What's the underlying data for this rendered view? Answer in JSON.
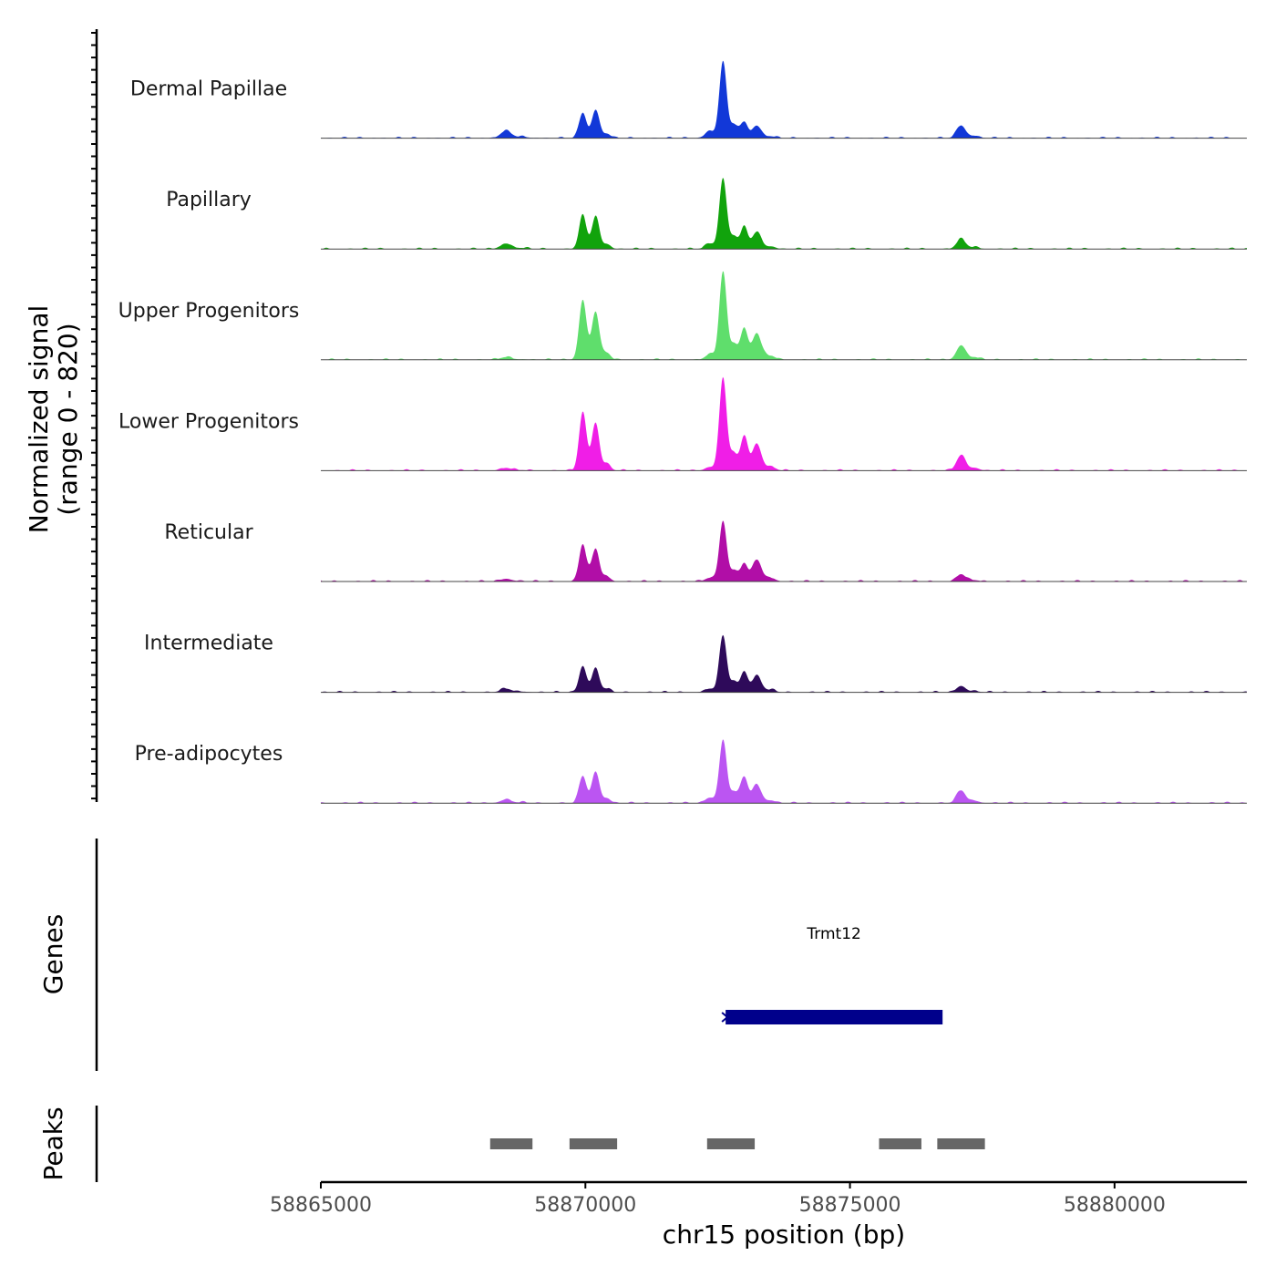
{
  "chart_data": {
    "type": "area",
    "chromosome": "chr15",
    "xlabel": "chr15 position (bp)",
    "ylabel_line1": "Normalized signal",
    "ylabel_line2": "(range 0 - 820)",
    "xlim": [
      58865000,
      58882500
    ],
    "x_ticks": [
      58865000,
      58870000,
      58875000,
      58880000
    ],
    "x_tick_labels": [
      "58865000",
      "58870000",
      "58875000",
      "58880000"
    ],
    "signal_range": [
      0,
      820
    ],
    "peak_centers": [
      58868500,
      58869950,
      58870200,
      58872350,
      58872600,
      58873000,
      58873250,
      58877100
    ],
    "tracks": [
      {
        "name": "Dermal Papillae",
        "color": "#1238d8",
        "heights": [
          80,
          280,
          270,
          80,
          820,
          180,
          110,
          140
        ]
      },
      {
        "name": "Papillary",
        "color": "#11a30c",
        "heights": [
          60,
          370,
          300,
          60,
          770,
          240,
          150,
          110
        ]
      },
      {
        "name": "Upper Progenitors",
        "color": "#5fde6c",
        "heights": [
          30,
          660,
          430,
          60,
          960,
          350,
          240,
          160
        ]
      },
      {
        "name": "Lower Progenitors",
        "color": "#f01ee7",
        "heights": [
          30,
          640,
          430,
          40,
          1020,
          380,
          240,
          170
        ]
      },
      {
        "name": "Reticular",
        "color": "#b10ea7",
        "heights": [
          30,
          410,
          300,
          40,
          660,
          200,
          210,
          80
        ]
      },
      {
        "name": "Intermediate",
        "color": "#2e0a5a",
        "heights": [
          40,
          290,
          220,
          40,
          620,
          230,
          150,
          70
        ]
      },
      {
        "name": "Pre-adipocytes",
        "color": "#bb55f2",
        "heights": [
          40,
          300,
          300,
          60,
          680,
          290,
          160,
          140
        ]
      }
    ],
    "genes_label": "Genes",
    "genes": [
      {
        "name": "Trmt12",
        "start": 58872650,
        "end": 58876750,
        "strand": "+",
        "color": "#00008b"
      }
    ],
    "peaks_label": "Peaks",
    "peaks": [
      {
        "start": 58868200,
        "end": 58869000
      },
      {
        "start": 58869700,
        "end": 58870600
      },
      {
        "start": 58872300,
        "end": 58873200
      },
      {
        "start": 58875550,
        "end": 58876350
      },
      {
        "start": 58876650,
        "end": 58877550
      }
    ],
    "peak_color": "#666666"
  }
}
